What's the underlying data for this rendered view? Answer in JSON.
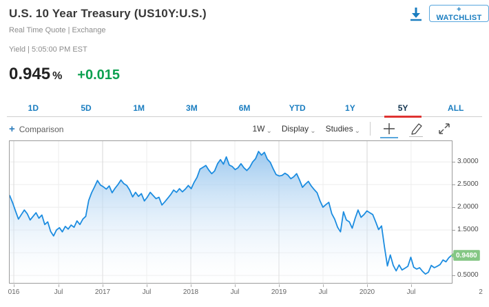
{
  "header": {
    "title": "U.S. 10 Year Treasury (US10Y:U.S.)",
    "subtitle": "Real Time Quote | Exchange",
    "quote_label": "Yield | 5:05:00 PM EST",
    "price": "0.945",
    "price_unit": "%",
    "change": "+0.015",
    "watchlist_button": "+ WATCHLIST"
  },
  "icons": {
    "download": "download-icon",
    "comparison_plus": "plus-icon",
    "interval_caret": "chevron-down-icon",
    "crosshair": "crosshair-icon",
    "draw": "pencil-icon",
    "fullscreen": "expand-icon"
  },
  "tabs": {
    "items": [
      "1D",
      "5D",
      "1M",
      "3M",
      "6M",
      "YTD",
      "1Y",
      "5Y",
      "ALL"
    ],
    "active_index": 7
  },
  "toolbar": {
    "comparison_label": "Comparison",
    "interval": "1W",
    "display_label": "Display",
    "studies_label": "Studies"
  },
  "colors": {
    "accent_blue": "#1a7dc0",
    "active_tab": "#12344f",
    "tab_underline_red": "#df3331",
    "change_green": "#0ca04f",
    "badge_green": "#84c784",
    "line_blue": "#1b8ce0",
    "fill_top_blue": "#98c6ee"
  },
  "chart_data": {
    "type": "area",
    "title": "U.S. 10 Year Treasury yield — 5Y, weekly (1W)",
    "xlabel": "",
    "ylabel": "Yield %",
    "grid": true,
    "legend": "none",
    "ylim": [
      0.335,
      3.457
    ],
    "y_grid_values": [
      3.0,
      2.5,
      2.0,
      1.5,
      1.0,
      0.5
    ],
    "y_ticks": [
      {
        "value": 3.0,
        "label": "3.0000"
      },
      {
        "value": 2.5,
        "label": "2.5000"
      },
      {
        "value": 2.0,
        "label": "2.0000"
      },
      {
        "value": 1.5,
        "label": "1.5000"
      },
      {
        "value": 0.5,
        "label": "0.5000"
      }
    ],
    "last_value": 0.948,
    "last_value_label": "0.9480",
    "x_ticks": [
      {
        "label": "016",
        "pos": 0.0093,
        "major": true,
        "grid": true
      },
      {
        "label": "Jul",
        "pos": 0.1106,
        "major": false,
        "grid": true
      },
      {
        "label": "2017",
        "pos": 0.2103,
        "major": true,
        "grid": true
      },
      {
        "label": "Jul",
        "pos": 0.31,
        "major": false,
        "grid": true
      },
      {
        "label": "2018",
        "pos": 0.4097,
        "major": true,
        "grid": true
      },
      {
        "label": "Jul",
        "pos": 0.5093,
        "major": false,
        "grid": true
      },
      {
        "label": "2019",
        "pos": 0.609,
        "major": true,
        "grid": true
      },
      {
        "label": "Jul",
        "pos": 0.7087,
        "major": false,
        "grid": true
      },
      {
        "label": "2020",
        "pos": 0.8084,
        "major": true,
        "grid": true
      },
      {
        "label": "Jul",
        "pos": 0.908,
        "major": false,
        "grid": true
      },
      {
        "label": "2",
        "pos": 1.065,
        "major": true,
        "grid": false
      }
    ],
    "series": [
      {
        "name": "US10Y yield",
        "x_start": "2016-01",
        "x_end": "2020-12",
        "values": [
          2.26,
          2.1,
          1.92,
          1.74,
          1.84,
          1.94,
          1.86,
          1.72,
          1.8,
          1.88,
          1.76,
          1.83,
          1.62,
          1.68,
          1.47,
          1.37,
          1.5,
          1.55,
          1.46,
          1.58,
          1.52,
          1.61,
          1.56,
          1.7,
          1.62,
          1.74,
          1.8,
          2.15,
          2.32,
          2.45,
          2.59,
          2.49,
          2.45,
          2.4,
          2.47,
          2.32,
          2.42,
          2.5,
          2.6,
          2.52,
          2.48,
          2.38,
          2.23,
          2.33,
          2.24,
          2.3,
          2.14,
          2.22,
          2.33,
          2.26,
          2.19,
          2.22,
          2.05,
          2.12,
          2.2,
          2.28,
          2.38,
          2.33,
          2.41,
          2.34,
          2.4,
          2.48,
          2.41,
          2.55,
          2.66,
          2.84,
          2.88,
          2.92,
          2.82,
          2.74,
          2.8,
          2.96,
          3.05,
          2.95,
          3.11,
          2.93,
          2.9,
          2.83,
          2.87,
          2.96,
          2.87,
          2.81,
          2.88,
          3.0,
          3.07,
          3.23,
          3.15,
          3.21,
          3.06,
          2.99,
          2.85,
          2.72,
          2.69,
          2.7,
          2.75,
          2.71,
          2.63,
          2.67,
          2.74,
          2.6,
          2.44,
          2.51,
          2.57,
          2.47,
          2.39,
          2.32,
          2.14,
          2.0,
          2.06,
          2.11,
          1.86,
          1.74,
          1.56,
          1.46,
          1.9,
          1.72,
          1.68,
          1.54,
          1.76,
          1.94,
          1.78,
          1.84,
          1.92,
          1.88,
          1.84,
          1.68,
          1.51,
          1.59,
          1.13,
          0.71,
          0.95,
          0.72,
          0.6,
          0.73,
          0.62,
          0.66,
          0.7,
          0.9,
          0.68,
          0.64,
          0.67,
          0.59,
          0.53,
          0.57,
          0.72,
          0.67,
          0.7,
          0.74,
          0.84,
          0.8,
          0.89,
          0.948
        ]
      }
    ]
  }
}
